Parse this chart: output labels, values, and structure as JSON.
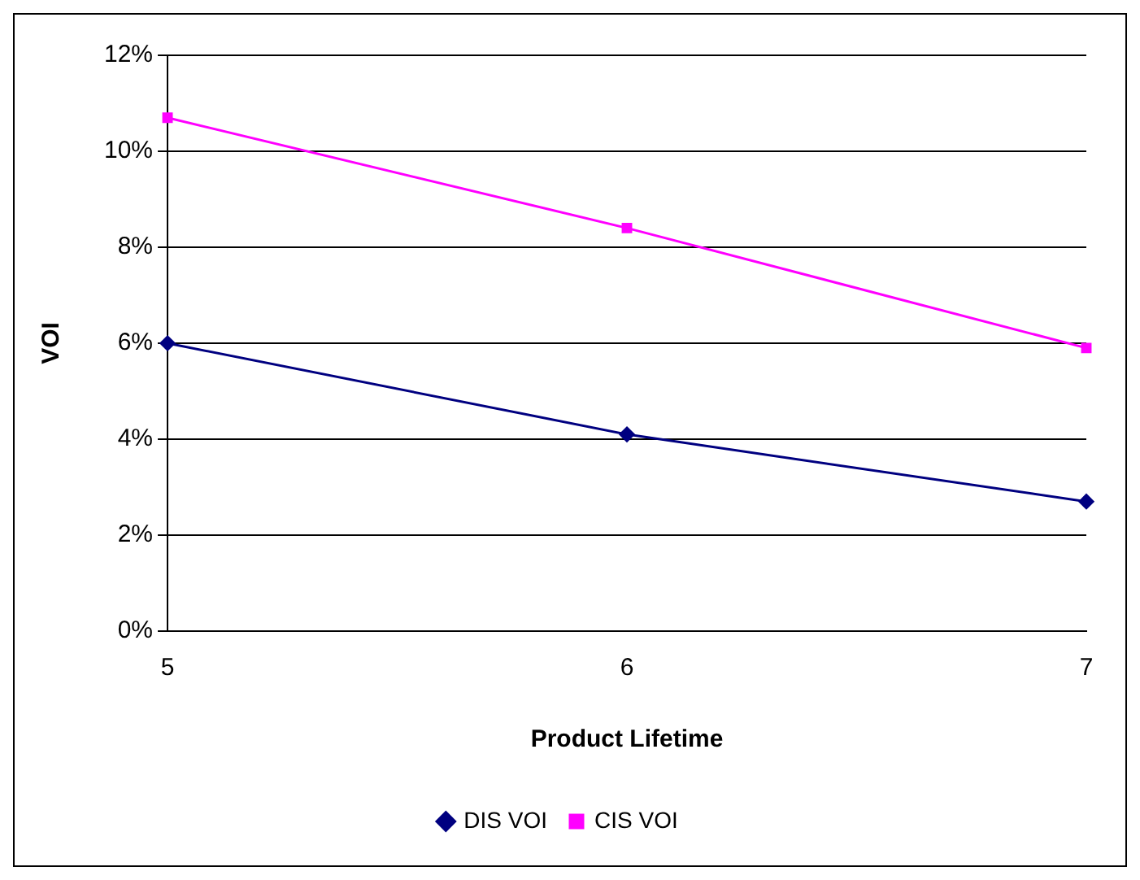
{
  "chart_data": {
    "type": "line",
    "xlabel": "Product Lifetime",
    "ylabel": "VOI",
    "categories": [
      "5",
      "6",
      "7"
    ],
    "series": [
      {
        "name": "DIS VOI",
        "color": "#000080",
        "marker": "diamond",
        "values": [
          6.0,
          4.1,
          2.7
        ]
      },
      {
        "name": "CIS VOI",
        "color": "#ff00ff",
        "marker": "square",
        "values": [
          10.7,
          8.4,
          5.9
        ]
      }
    ],
    "ylim": [
      0,
      12
    ],
    "yticks": [
      {
        "value": 0,
        "label": "0%"
      },
      {
        "value": 2,
        "label": "2%"
      },
      {
        "value": 4,
        "label": "4%"
      },
      {
        "value": 6,
        "label": "6%"
      },
      {
        "value": 8,
        "label": "8%"
      },
      {
        "value": 10,
        "label": "10%"
      },
      {
        "value": 12,
        "label": "12%"
      }
    ],
    "grid": "y",
    "legend": "bottom"
  }
}
